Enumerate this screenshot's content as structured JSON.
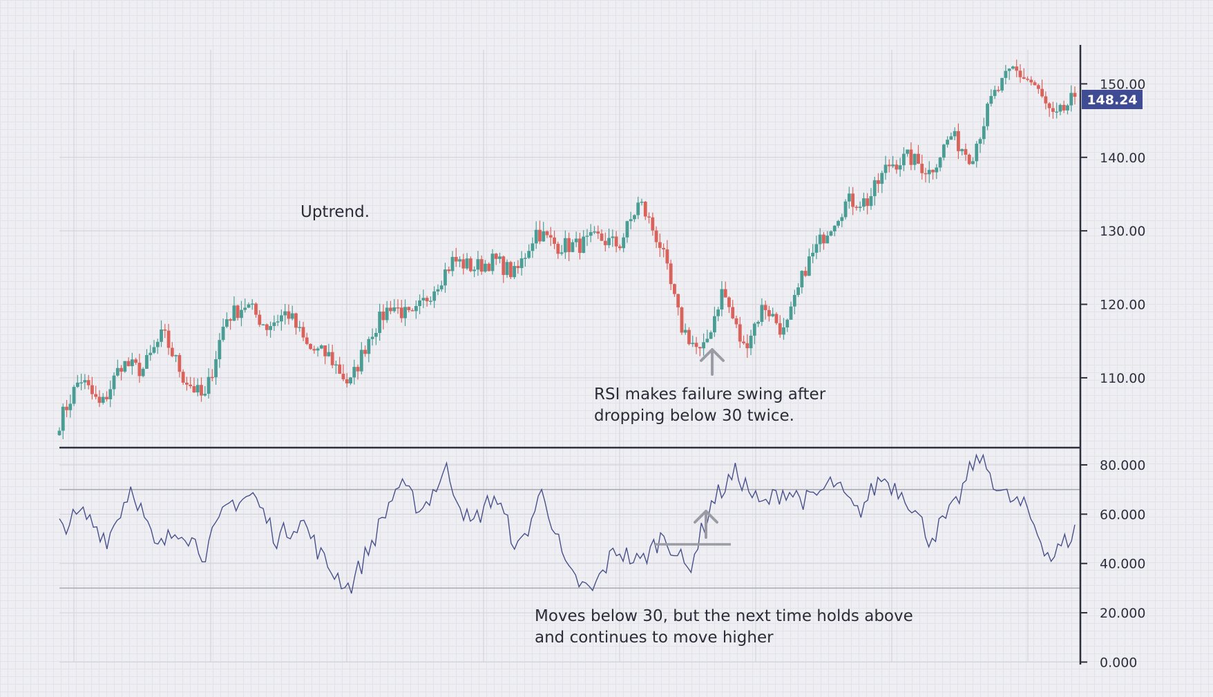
{
  "colors": {
    "up": "#4a9d94",
    "down": "#d9625b",
    "rsi_line": "#48508a",
    "axis": "#2e2f3e",
    "grid": "#d4d4db",
    "price_tag_bg": "#3f4c93",
    "annotation_arrow": "#9b9ba6"
  },
  "chart_data": [
    {
      "type": "candlestick",
      "title": "",
      "xlabel": "",
      "ylabel": "",
      "y_ticks": [
        "150.00",
        "140.00",
        "130.00",
        "120.00",
        "110.00"
      ],
      "y_tick_values": [
        150,
        140,
        130,
        120,
        110
      ],
      "ylim": [
        100.5,
        155.3
      ],
      "current_price": "148.24",
      "grid": true,
      "series": [
        {
          "anchors_close": [
            104,
            110,
            106,
            112,
            111,
            116,
            110,
            107,
            118,
            120,
            117,
            119,
            114,
            113,
            109,
            116,
            120,
            118,
            122,
            126,
            125,
            126,
            124,
            130,
            128,
            128,
            129,
            128,
            134,
            128,
            117,
            113,
            122,
            114,
            120,
            116,
            125,
            130,
            134,
            134,
            139,
            140,
            138,
            143,
            140,
            148,
            152,
            150,
            145,
            148.24
          ]
        }
      ]
    },
    {
      "type": "line",
      "title": "",
      "xlabel": "",
      "ylabel": "",
      "y_ticks": [
        "80.000",
        "60.000",
        "40.000",
        "20.000",
        "0.000"
      ],
      "y_tick_values": [
        80,
        60,
        40,
        20,
        0
      ],
      "ylim": [
        -1,
        87
      ],
      "reference_lines": [
        70,
        30
      ],
      "grid": true,
      "series": [
        {
          "anchors": [
            55,
            60,
            50,
            72,
            45,
            55,
            44,
            64,
            68,
            50,
            58,
            40,
            30,
            50,
            72,
            62,
            78,
            55,
            68,
            45,
            70,
            36,
            28,
            46,
            40,
            52,
            37,
            65,
            77,
            63,
            70,
            65,
            73,
            60,
            75,
            68,
            50,
            62,
            85,
            68,
            62,
            42,
            53
          ]
        }
      ]
    }
  ],
  "annotations": {
    "uptrend": "Uptrend.",
    "failure_swing_line1": "RSI makes failure swing after",
    "failure_swing_line2": "dropping below 30 twice.",
    "rsi_note_line1": "Moves below 30, but the next time holds above",
    "rsi_note_line2": "and continues to move higher"
  }
}
